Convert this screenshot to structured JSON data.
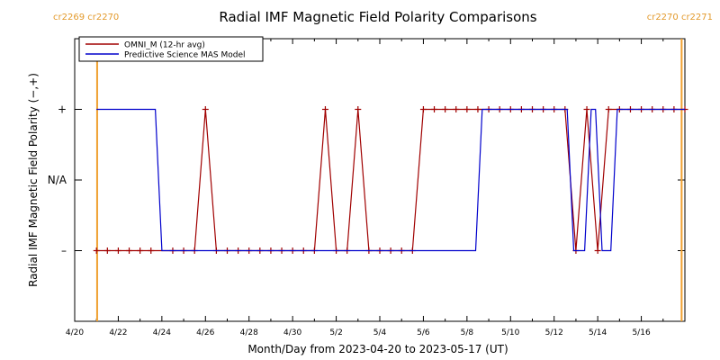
{
  "chart_data": {
    "type": "line",
    "title": "Radial IMF Magnetic Field Polarity Comparisons",
    "xlabel": "Month/Day from 2023-04-20 to 2023-05-17 (UT)",
    "ylabel": "Radial IMF Magnetic Field Polarity (−,+)",
    "x_unit": "days since 2023-04-20",
    "xlim": [
      0,
      28
    ],
    "ylim": [
      -2,
      2
    ],
    "y_ticks": [
      {
        "value": 1,
        "label": "+"
      },
      {
        "value": 0,
        "label": "N/A"
      },
      {
        "value": -1,
        "label": "–"
      }
    ],
    "x_ticks": [
      {
        "value": 0,
        "label": "4/20"
      },
      {
        "value": 2,
        "label": "4/22"
      },
      {
        "value": 4,
        "label": "4/24"
      },
      {
        "value": 6,
        "label": "4/26"
      },
      {
        "value": 8,
        "label": "4/28"
      },
      {
        "value": 10,
        "label": "4/30"
      },
      {
        "value": 12,
        "label": "5/2"
      },
      {
        "value": 14,
        "label": "5/4"
      },
      {
        "value": 16,
        "label": "5/6"
      },
      {
        "value": 18,
        "label": "5/8"
      },
      {
        "value": 20,
        "label": "5/10"
      },
      {
        "value": 22,
        "label": "5/12"
      },
      {
        "value": 24,
        "label": "5/14"
      },
      {
        "value": 26,
        "label": "5/16"
      }
    ],
    "rotation_markers": [
      {
        "x": 1.03,
        "left_label": "cr2269",
        "right_label": "cr2270"
      },
      {
        "x": 27.85,
        "left_label": "cr2270",
        "right_label": "cr2271"
      }
    ],
    "series": [
      {
        "name": "OMNI_M (12-hr avg)",
        "color": "#a00000",
        "marker": "+",
        "points": [
          [
            1,
            -1
          ],
          [
            1.5,
            -1
          ],
          [
            2,
            -1
          ],
          [
            2.5,
            -1
          ],
          [
            3,
            -1
          ],
          [
            3.5,
            -1
          ],
          [
            4.5,
            -1
          ],
          [
            5,
            -1
          ],
          [
            5.5,
            -1
          ],
          [
            6,
            1
          ],
          [
            6.5,
            -1
          ],
          [
            7,
            -1
          ],
          [
            7.5,
            -1
          ],
          [
            8,
            -1
          ],
          [
            8.5,
            -1
          ],
          [
            9,
            -1
          ],
          [
            9.5,
            -1
          ],
          [
            10,
            -1
          ],
          [
            10.5,
            -1
          ],
          [
            11,
            -1
          ],
          [
            11.5,
            1
          ],
          [
            12,
            -1
          ],
          [
            12.5,
            -1
          ],
          [
            13,
            1
          ],
          [
            13.5,
            -1
          ],
          [
            14,
            -1
          ],
          [
            14.5,
            -1
          ],
          [
            15,
            -1
          ],
          [
            15.5,
            -1
          ],
          [
            16,
            1
          ],
          [
            16.5,
            1
          ],
          [
            17,
            1
          ],
          [
            17.5,
            1
          ],
          [
            18,
            1
          ],
          [
            18.5,
            1
          ],
          [
            19,
            1
          ],
          [
            19.5,
            1
          ],
          [
            20,
            1
          ],
          [
            20.5,
            1
          ],
          [
            21,
            1
          ],
          [
            21.5,
            1
          ],
          [
            22,
            1
          ],
          [
            22.5,
            1
          ],
          [
            23,
            -1
          ],
          [
            23.5,
            1
          ],
          [
            24,
            -1
          ],
          [
            24.5,
            1
          ],
          [
            25,
            1
          ],
          [
            25.5,
            1
          ],
          [
            26,
            1
          ],
          [
            26.5,
            1
          ],
          [
            27,
            1
          ],
          [
            27.5,
            1
          ],
          [
            28,
            1
          ]
        ]
      },
      {
        "name": "Predictive Science MAS Model",
        "color": "#0000cc",
        "marker": "",
        "points": [
          [
            1,
            1
          ],
          [
            3.7,
            1
          ],
          [
            4.0,
            -1
          ],
          [
            18.4,
            -1
          ],
          [
            18.7,
            1
          ],
          [
            22.6,
            1
          ],
          [
            22.9,
            -1
          ],
          [
            23.4,
            -1
          ],
          [
            23.7,
            1
          ],
          [
            23.9,
            1
          ],
          [
            24.2,
            -1
          ],
          [
            24.6,
            -1
          ],
          [
            24.9,
            1
          ],
          [
            28,
            1
          ]
        ]
      }
    ],
    "legend": "top-left"
  }
}
